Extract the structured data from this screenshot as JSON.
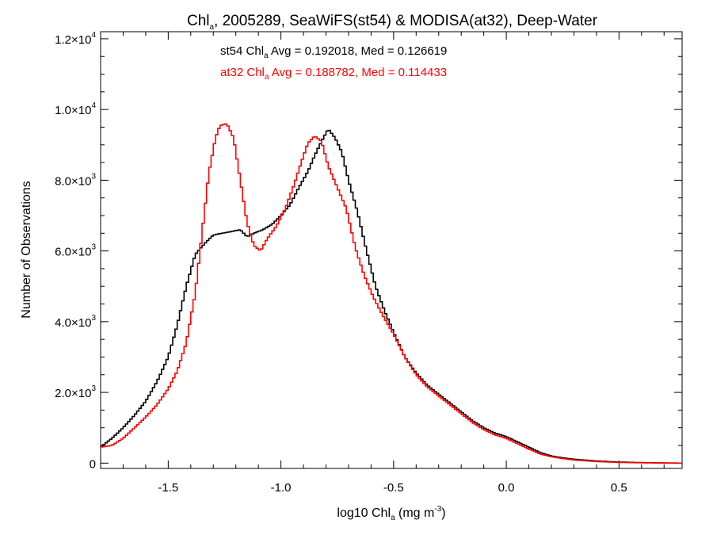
{
  "chart_data": {
    "type": "line",
    "style": "step",
    "title": {
      "prefix": "Chl",
      "subscript": "a",
      "rest": ", 2005289, SeaWiFS(st54) & MODISA(at32), Deep-Water"
    },
    "xlabel": {
      "prefix": "log10 Chl",
      "subscript": "a",
      "unit_open": " (mg m",
      "superscript": "-3",
      "unit_close": ")"
    },
    "ylabel": "Number of Observations",
    "xlim": [
      -1.8,
      0.78
    ],
    "ylim": [
      -150,
      12200
    ],
    "x_ticks": [
      {
        "value": -1.5,
        "label": "-1.5"
      },
      {
        "value": -1.0,
        "label": "-1.0"
      },
      {
        "value": -0.5,
        "label": "-0.5"
      },
      {
        "value": 0.0,
        "label": "0.0"
      },
      {
        "value": 0.5,
        "label": "0.5"
      }
    ],
    "y_ticks": [
      {
        "value": 0,
        "mant": "0",
        "exp": ""
      },
      {
        "value": 2000,
        "mant": "2.0×10",
        "exp": "3"
      },
      {
        "value": 4000,
        "mant": "4.0×10",
        "exp": "3"
      },
      {
        "value": 6000,
        "mant": "6.0×10",
        "exp": "3"
      },
      {
        "value": 8000,
        "mant": "8.0×10",
        "exp": "3"
      },
      {
        "value": 10000,
        "mant": "1.0×10",
        "exp": "4"
      },
      {
        "value": 12000,
        "mant": "1.2×10",
        "exp": "4"
      }
    ],
    "x_minor_step": 0.1,
    "y_minor_step": 500,
    "grid": false,
    "annotations": [
      {
        "name": "st54",
        "color": "#000000",
        "prefix": "st54 Chl",
        "subscript": "a",
        "text": " Avg = 0.192018, Med = 0.126619"
      },
      {
        "name": "at32",
        "color": "#ff0000",
        "prefix": "at32 Chl",
        "subscript": "a",
        "text": " Avg = 0.188782, Med = 0.114433"
      }
    ],
    "bin_width": 0.01,
    "series": [
      {
        "name": "st54",
        "color": "#000000",
        "points": [
          [
            -1.8,
            450
          ],
          [
            -1.75,
            700
          ],
          [
            -1.7,
            1000
          ],
          [
            -1.65,
            1350
          ],
          [
            -1.6,
            1750
          ],
          [
            -1.55,
            2300
          ],
          [
            -1.5,
            3000
          ],
          [
            -1.46,
            3900
          ],
          [
            -1.42,
            5000
          ],
          [
            -1.38,
            5900
          ],
          [
            -1.34,
            6200
          ],
          [
            -1.3,
            6450
          ],
          [
            -1.26,
            6500
          ],
          [
            -1.22,
            6550
          ],
          [
            -1.18,
            6600
          ],
          [
            -1.15,
            6400
          ],
          [
            -1.12,
            6500
          ],
          [
            -1.08,
            6600
          ],
          [
            -1.04,
            6750
          ],
          [
            -1.0,
            7000
          ],
          [
            -0.96,
            7300
          ],
          [
            -0.92,
            7800
          ],
          [
            -0.88,
            8250
          ],
          [
            -0.85,
            8700
          ],
          [
            -0.82,
            9100
          ],
          [
            -0.79,
            9450
          ],
          [
            -0.76,
            9200
          ],
          [
            -0.73,
            8800
          ],
          [
            -0.7,
            8000
          ],
          [
            -0.66,
            7100
          ],
          [
            -0.62,
            6000
          ],
          [
            -0.58,
            5000
          ],
          [
            -0.54,
            4300
          ],
          [
            -0.5,
            3700
          ],
          [
            -0.45,
            3000
          ],
          [
            -0.4,
            2550
          ],
          [
            -0.35,
            2200
          ],
          [
            -0.3,
            1950
          ],
          [
            -0.25,
            1700
          ],
          [
            -0.2,
            1450
          ],
          [
            -0.15,
            1200
          ],
          [
            -0.1,
            1000
          ],
          [
            -0.05,
            850
          ],
          [
            0.0,
            750
          ],
          [
            0.05,
            600
          ],
          [
            0.1,
            450
          ],
          [
            0.15,
            300
          ],
          [
            0.2,
            200
          ],
          [
            0.25,
            150
          ],
          [
            0.3,
            110
          ],
          [
            0.4,
            60
          ],
          [
            0.5,
            30
          ],
          [
            0.6,
            15
          ],
          [
            0.7,
            5
          ],
          [
            0.78,
            0
          ]
        ]
      },
      {
        "name": "at32",
        "color": "#ff0000",
        "points": [
          [
            -1.8,
            450
          ],
          [
            -1.75,
            500
          ],
          [
            -1.7,
            700
          ],
          [
            -1.65,
            1000
          ],
          [
            -1.6,
            1300
          ],
          [
            -1.55,
            1650
          ],
          [
            -1.5,
            2100
          ],
          [
            -1.46,
            2600
          ],
          [
            -1.42,
            3400
          ],
          [
            -1.38,
            4800
          ],
          [
            -1.35,
            6500
          ],
          [
            -1.32,
            8200
          ],
          [
            -1.29,
            9200
          ],
          [
            -1.27,
            9550
          ],
          [
            -1.24,
            9600
          ],
          [
            -1.21,
            9200
          ],
          [
            -1.18,
            8000
          ],
          [
            -1.15,
            6800
          ],
          [
            -1.12,
            6150
          ],
          [
            -1.09,
            6000
          ],
          [
            -1.06,
            6350
          ],
          [
            -1.02,
            6700
          ],
          [
            -0.98,
            7200
          ],
          [
            -0.94,
            7900
          ],
          [
            -0.91,
            8500
          ],
          [
            -0.88,
            9050
          ],
          [
            -0.85,
            9250
          ],
          [
            -0.82,
            9100
          ],
          [
            -0.79,
            8400
          ],
          [
            -0.75,
            7800
          ],
          [
            -0.71,
            7200
          ],
          [
            -0.67,
            6100
          ],
          [
            -0.63,
            5300
          ],
          [
            -0.59,
            4700
          ],
          [
            -0.55,
            4200
          ],
          [
            -0.5,
            3650
          ],
          [
            -0.45,
            3000
          ],
          [
            -0.4,
            2500
          ],
          [
            -0.35,
            2150
          ],
          [
            -0.3,
            1900
          ],
          [
            -0.25,
            1650
          ],
          [
            -0.2,
            1400
          ],
          [
            -0.15,
            1150
          ],
          [
            -0.1,
            950
          ],
          [
            -0.05,
            800
          ],
          [
            0.0,
            700
          ],
          [
            0.05,
            550
          ],
          [
            0.1,
            400
          ],
          [
            0.15,
            260
          ],
          [
            0.2,
            180
          ],
          [
            0.25,
            130
          ],
          [
            0.3,
            90
          ],
          [
            0.4,
            45
          ],
          [
            0.5,
            20
          ],
          [
            0.6,
            10
          ],
          [
            0.7,
            3
          ],
          [
            0.78,
            0
          ]
        ]
      }
    ]
  }
}
